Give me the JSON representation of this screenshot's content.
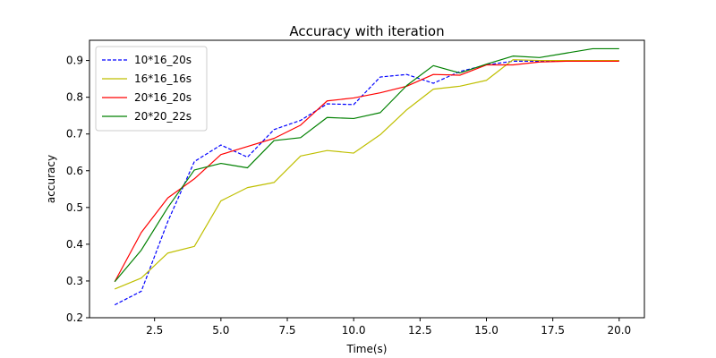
{
  "chart_data": {
    "type": "line",
    "title": "Accuracy with iteration",
    "xlabel": "Time(s)",
    "ylabel": "accuracy",
    "xlim": [
      0.05,
      20.95
    ],
    "ylim": [
      0.2,
      0.955
    ],
    "xticks": [
      2.5,
      5.0,
      7.5,
      10.0,
      12.5,
      15.0,
      17.5,
      20.0
    ],
    "xtick_labels": [
      "2.5",
      "5.0",
      "7.5",
      "10.0",
      "12.5",
      "15.0",
      "17.5",
      "20.0"
    ],
    "yticks": [
      0.2,
      0.3,
      0.4,
      0.5,
      0.6,
      0.7,
      0.8,
      0.9
    ],
    "ytick_labels": [
      "0.2",
      "0.3",
      "0.4",
      "0.5",
      "0.6",
      "0.7",
      "0.8",
      "0.9"
    ],
    "grid": false,
    "legend_position": "top-left",
    "x": [
      1,
      2,
      3,
      4,
      5,
      6,
      7,
      8,
      9,
      10,
      11,
      12,
      13,
      14,
      15,
      16,
      17,
      18,
      19,
      20
    ],
    "series": [
      {
        "name": "10*16_20s",
        "color": "#0000ff",
        "dash": true,
        "values": [
          0.235,
          0.272,
          0.462,
          0.625,
          0.67,
          0.637,
          0.712,
          0.737,
          0.782,
          0.78,
          0.855,
          0.862,
          0.838,
          0.87,
          0.888,
          0.898,
          0.898,
          0.9,
          0.9,
          0.9
        ]
      },
      {
        "name": "16*16_16s",
        "color": "#bfbf00",
        "dash": false,
        "values": [
          0.278,
          0.308,
          0.376,
          0.394,
          0.518,
          0.554,
          0.568,
          0.64,
          0.655,
          0.648,
          0.698,
          0.766,
          0.822,
          0.83,
          0.846,
          0.902,
          0.9,
          0.9,
          0.9,
          0.9
        ]
      },
      {
        "name": "20*16_20s",
        "color": "#ff0000",
        "dash": false,
        "values": [
          0.298,
          0.432,
          0.526,
          0.578,
          0.644,
          0.666,
          0.688,
          0.724,
          0.79,
          0.798,
          0.812,
          0.83,
          0.862,
          0.86,
          0.888,
          0.888,
          0.896,
          0.898,
          0.898,
          0.898
        ]
      },
      {
        "name": "20*20_22s",
        "color": "#008000",
        "dash": false,
        "values": [
          0.298,
          0.384,
          0.5,
          0.602,
          0.62,
          0.608,
          0.682,
          0.69,
          0.745,
          0.742,
          0.758,
          0.832,
          0.886,
          0.866,
          0.89,
          0.912,
          0.908,
          0.92,
          0.932,
          0.932
        ]
      }
    ]
  }
}
